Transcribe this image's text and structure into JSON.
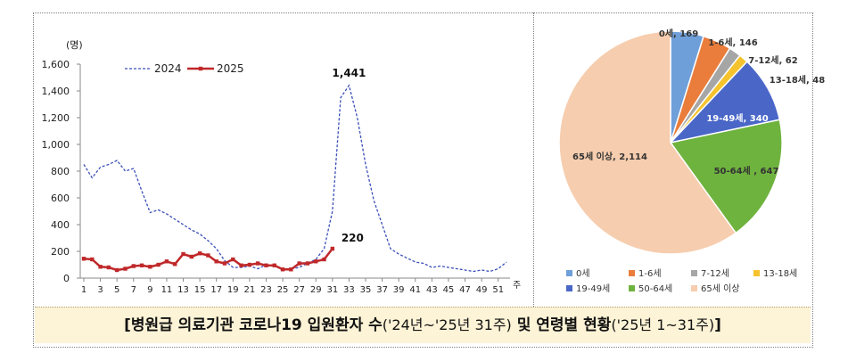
{
  "chart_data": [
    {
      "type": "line",
      "ylabel": "(명)",
      "xlabel": "주",
      "ylim": [
        0,
        1600
      ],
      "yticks": [
        "0",
        "200",
        "400",
        "600",
        "800",
        "1,000",
        "1,200",
        "1,400",
        "1,600"
      ],
      "yticks_values": [
        0,
        200,
        400,
        600,
        800,
        1000,
        1200,
        1400,
        1600
      ],
      "xticks": [
        1,
        3,
        5,
        7,
        9,
        11,
        13,
        15,
        17,
        19,
        21,
        23,
        25,
        27,
        29,
        31,
        33,
        35,
        37,
        39,
        41,
        43,
        45,
        47,
        49,
        51
      ],
      "xlim": [
        1,
        52
      ],
      "grid": false,
      "legend": "top-left",
      "series": [
        {
          "name": "2024",
          "style": "dashed",
          "color": "#3b4fb8",
          "x": [
            1,
            2,
            3,
            4,
            5,
            6,
            7,
            8,
            9,
            10,
            11,
            12,
            13,
            14,
            15,
            16,
            17,
            18,
            19,
            20,
            21,
            22,
            23,
            24,
            25,
            26,
            27,
            28,
            29,
            30,
            31,
            32,
            33,
            34,
            35,
            36,
            37,
            38,
            39,
            40,
            41,
            42,
            43,
            44,
            45,
            46,
            47,
            48,
            49,
            50,
            51,
            52
          ],
          "values": [
            850,
            750,
            830,
            850,
            880,
            800,
            820,
            650,
            490,
            510,
            480,
            440,
            400,
            360,
            330,
            280,
            220,
            130,
            80,
            80,
            90,
            70,
            100,
            90,
            70,
            70,
            80,
            110,
            140,
            220,
            500,
            1350,
            1441,
            1200,
            850,
            580,
            400,
            220,
            180,
            150,
            120,
            110,
            80,
            90,
            80,
            70,
            60,
            50,
            60,
            50,
            70,
            120
          ]
        },
        {
          "name": "2025",
          "style": "solid-markers",
          "color": "#c0282a",
          "x": [
            1,
            2,
            3,
            4,
            5,
            6,
            7,
            8,
            9,
            10,
            11,
            12,
            13,
            14,
            15,
            16,
            17,
            18,
            19,
            20,
            21,
            22,
            23,
            24,
            25,
            26,
            27,
            28,
            29,
            30,
            31
          ],
          "values": [
            145,
            140,
            85,
            80,
            60,
            70,
            90,
            95,
            85,
            100,
            125,
            105,
            180,
            160,
            185,
            170,
            125,
            110,
            140,
            95,
            100,
            110,
            95,
            95,
            65,
            65,
            110,
            110,
            125,
            140,
            220
          ]
        }
      ],
      "annotations": [
        {
          "text": "1,441",
          "x": 33,
          "y": 1441
        },
        {
          "text": "220",
          "x": 31,
          "y": 220
        }
      ]
    },
    {
      "type": "pie",
      "legend": "bottom",
      "slices": [
        {
          "label": "0세",
          "value": 169,
          "data_label": "0세, 169",
          "color": "#6f9fd9"
        },
        {
          "label": "1-6세",
          "value": 146,
          "data_label": "1-6세, 146",
          "color": "#ea7d3b"
        },
        {
          "label": "7-12세",
          "value": 62,
          "data_label": "7-12세, 62",
          "color": "#a6a6a6"
        },
        {
          "label": "13-18세",
          "value": 48,
          "data_label": "13-18세, 48",
          "color": "#f5c32d"
        },
        {
          "label": "19-49세",
          "value": 340,
          "data_label": "19-49세, 340",
          "color": "#4a67c8"
        },
        {
          "label": "50-64세",
          "value": 647,
          "data_label": "50-64세 , 647",
          "color": "#6fb33f"
        },
        {
          "label": "65세 이상",
          "value": 2114,
          "data_label": "65세 이상, 2,114",
          "color": "#f6cdae"
        }
      ]
    }
  ],
  "caption": {
    "bold_a": "[병원급 의료기관 코로나19 입원환자 수",
    "normal_a": "('24년~'25년 31주)",
    "bold_b": " 및 연령별 현황",
    "normal_b": "('25년 1~31주)",
    "bold_c": "]"
  }
}
